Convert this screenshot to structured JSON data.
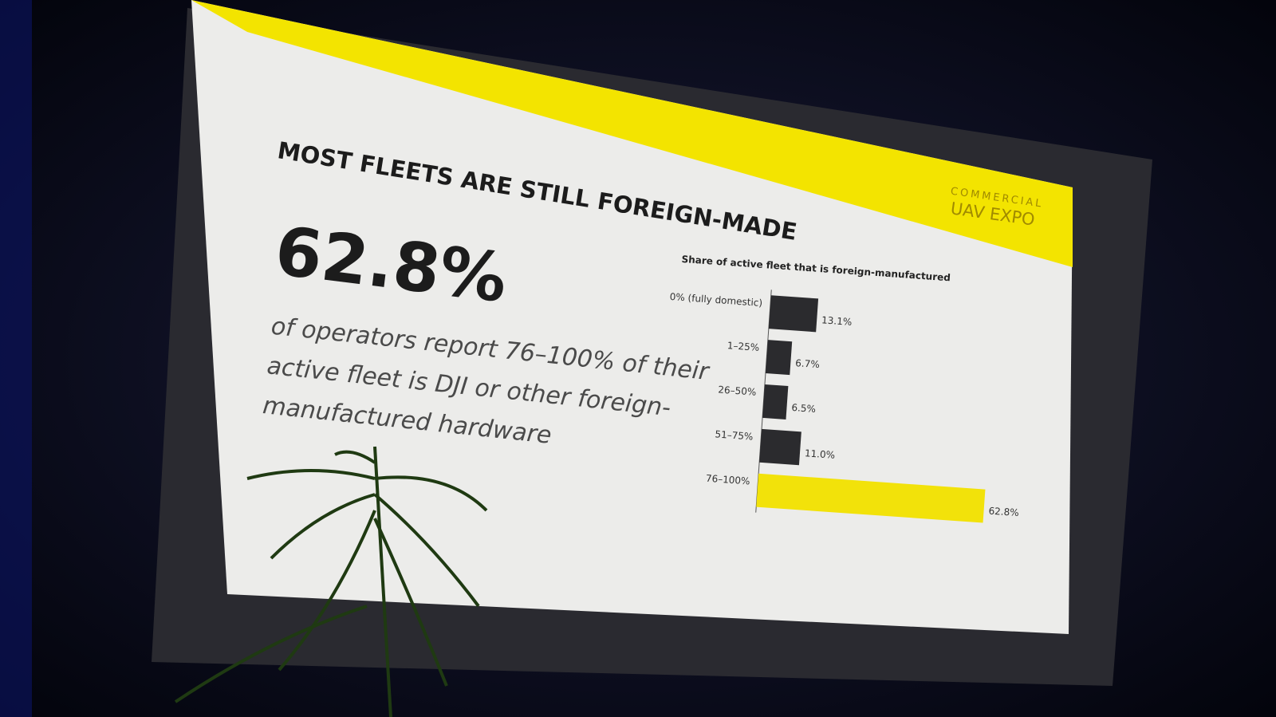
{
  "slide": {
    "title": "MOST FLEETS ARE STILL FOREIGN-MADE",
    "stat": "62.8%",
    "description": [
      "of operators report 76–100% of their",
      "active fleet is DJI or other foreign-",
      "manufactured hardware"
    ],
    "logo": [
      "COMMERCIAL",
      "UAV EXPO"
    ]
  },
  "chart_data": {
    "type": "bar",
    "orientation": "horizontal",
    "title": "Share of active fleet that is foreign-manufactured",
    "categories": [
      "0% (fully domestic)",
      "1–25%",
      "26–50%",
      "51–75%",
      "76–100%"
    ],
    "values": [
      13.1,
      6.7,
      6.5,
      11.0,
      62.8
    ],
    "value_labels": [
      "13.1%",
      "6.7%",
      "6.5%",
      "11.0%",
      "62.8%"
    ],
    "colors": [
      "#2b2b2e",
      "#2b2b2e",
      "#2b2b2e",
      "#2b2b2e",
      "#f2e20a"
    ]
  }
}
